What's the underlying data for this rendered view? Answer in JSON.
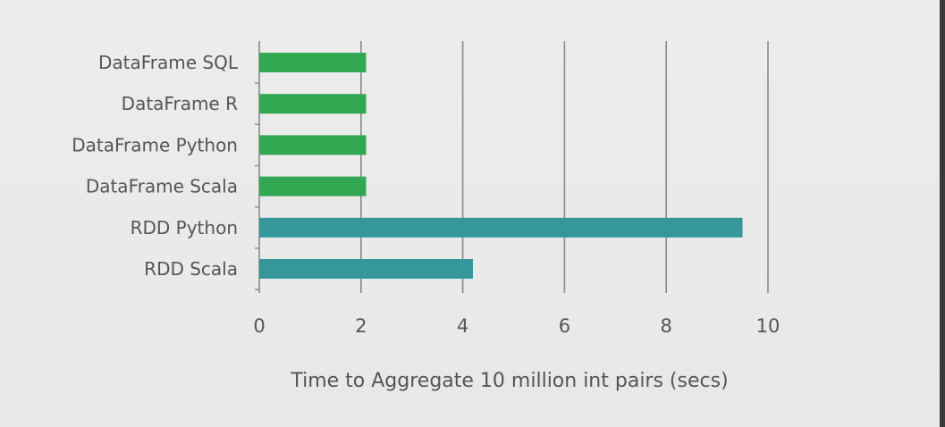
{
  "chart_data": {
    "type": "bar",
    "orientation": "horizontal",
    "categories": [
      "DataFrame SQL",
      "DataFrame R",
      "DataFrame Python",
      "DataFrame Scala",
      "RDD Python",
      "RDD Scala"
    ],
    "values": [
      2.1,
      2.1,
      2.1,
      2.1,
      9.5,
      4.2
    ],
    "colors": [
      "#33a852",
      "#33a852",
      "#33a852",
      "#33a852",
      "#35979a",
      "#35979a"
    ],
    "xlabel": "Time to Aggregate 10 million int pairs (secs)",
    "ylabel": "",
    "xlim": [
      0,
      10
    ],
    "xticks": [
      "0",
      "2",
      "4",
      "6",
      "8",
      "10"
    ],
    "xtick_values": [
      0,
      2,
      4,
      6,
      8,
      10
    ],
    "grid": true
  }
}
